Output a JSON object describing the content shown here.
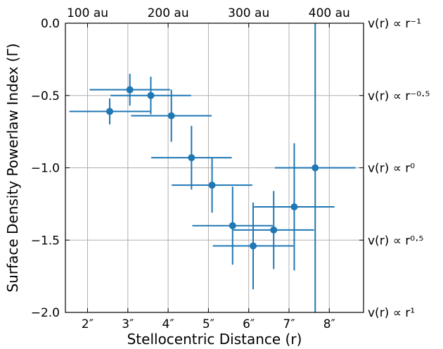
{
  "chart_data": {
    "type": "scatter",
    "title": "",
    "xlabel": "Stellocentric Distance (r)",
    "ylabel": "Surface Density Powerlaw Index (Γ)",
    "xlim": [
      1.45,
      8.85
    ],
    "ylim": [
      -2.0,
      0.0
    ],
    "grid": true,
    "x_ticks": [
      {
        "value": 2,
        "label": "2″"
      },
      {
        "value": 3,
        "label": "3″"
      },
      {
        "value": 4,
        "label": "4″"
      },
      {
        "value": 5,
        "label": "5″"
      },
      {
        "value": 6,
        "label": "6″"
      },
      {
        "value": 7,
        "label": "7″"
      },
      {
        "value": 8,
        "label": "8″"
      }
    ],
    "y_ticks": [
      {
        "value": 0.0,
        "label": "0.0"
      },
      {
        "value": -0.5,
        "label": "−0.5"
      },
      {
        "value": -1.0,
        "label": "−1.0"
      },
      {
        "value": -1.5,
        "label": "−1.5"
      },
      {
        "value": -2.0,
        "label": "−2.0"
      }
    ],
    "top_axis_ticks": [
      {
        "value": 2.0,
        "label": "100 au"
      },
      {
        "value": 4.0,
        "label": "200 au"
      },
      {
        "value": 6.0,
        "label": "300 au"
      },
      {
        "value": 8.0,
        "label": "400 au"
      }
    ],
    "right_axis_ticks": [
      {
        "value": 0.0,
        "label": "v(r) ∝ r⁻¹"
      },
      {
        "value": -0.5,
        "label": "v(r) ∝ r⁻⁰·⁵"
      },
      {
        "value": -1.0,
        "label": "v(r) ∝ r⁰"
      },
      {
        "value": -1.5,
        "label": "v(r) ∝ r⁰·⁵"
      },
      {
        "value": -2.0,
        "label": "v(r) ∝ r¹"
      }
    ],
    "series": [
      {
        "color": "#1f77b4",
        "points": [
          {
            "x": 2.55,
            "y": -0.61,
            "xerr": 1.0,
            "yerr": 0.09
          },
          {
            "x": 3.05,
            "y": -0.46,
            "xerr": 1.0,
            "yerr": 0.11
          },
          {
            "x": 3.57,
            "y": -0.5,
            "xerr": 1.0,
            "yerr": 0.13
          },
          {
            "x": 4.08,
            "y": -0.64,
            "xerr": 1.0,
            "yerr": 0.18
          },
          {
            "x": 4.58,
            "y": -0.93,
            "xerr": 1.0,
            "yerr": 0.22
          },
          {
            "x": 5.09,
            "y": -1.12,
            "xerr": 1.0,
            "yerr": 0.19
          },
          {
            "x": 5.6,
            "y": -1.4,
            "xerr": 1.0,
            "yerr": 0.27
          },
          {
            "x": 6.11,
            "y": -1.54,
            "xerr": 1.0,
            "yerr": 0.3
          },
          {
            "x": 6.62,
            "y": -1.43,
            "xerr": 1.0,
            "yerr": 0.27
          },
          {
            "x": 7.13,
            "y": -1.27,
            "xerr": 1.0,
            "yerr": 0.44
          },
          {
            "x": 7.65,
            "y": -1.0,
            "xerr": 1.0,
            "yerr": 1.0
          }
        ]
      }
    ]
  }
}
